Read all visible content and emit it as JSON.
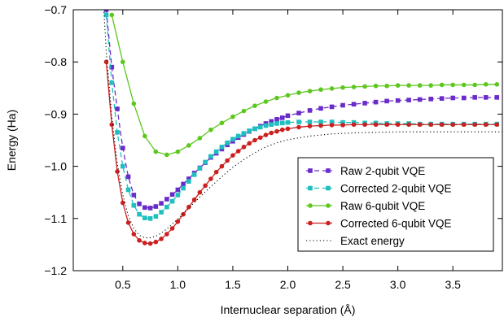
{
  "chart_data": {
    "type": "line",
    "title": "",
    "xlabel": "Internuclear separation (Å)",
    "ylabel": "Energy (Ha)",
    "xlim": [
      0.05,
      3.95
    ],
    "ylim": [
      -1.2,
      -0.7
    ],
    "xticks": [
      0.5,
      1.0,
      1.5,
      2.0,
      2.5,
      3.0,
      3.5
    ],
    "xtick_labels": [
      "0.5",
      "1.0",
      "1.5",
      "2.0",
      "2.5",
      "3.0",
      "3.5"
    ],
    "yticks": [
      -1.2,
      -1.1,
      -1.0,
      -0.9,
      -0.8,
      -0.7
    ],
    "ytick_labels": [
      "−1.2",
      "−1.1",
      "−1.0",
      "−0.9",
      "−0.8",
      "−0.7"
    ],
    "grid": false,
    "legend_position": "bottom-right",
    "series": [
      {
        "name": "Raw 2-qubit VQE",
        "color": "#6a2cc9",
        "marker": "square",
        "dash": "dashed",
        "x": [
          0.35,
          0.4,
          0.45,
          0.5,
          0.55,
          0.6,
          0.65,
          0.7,
          0.75,
          0.8,
          0.85,
          0.9,
          0.95,
          1.0,
          1.05,
          1.1,
          1.15,
          1.2,
          1.25,
          1.3,
          1.35,
          1.4,
          1.45,
          1.5,
          1.55,
          1.6,
          1.65,
          1.7,
          1.75,
          1.8,
          1.85,
          1.9,
          1.95,
          2.0,
          2.1,
          2.2,
          2.3,
          2.4,
          2.5,
          2.6,
          2.7,
          2.8,
          2.9,
          3.0,
          3.1,
          3.2,
          3.3,
          3.4,
          3.5,
          3.6,
          3.7,
          3.8,
          3.9
        ],
        "y": [
          -0.7,
          -0.81,
          -0.89,
          -0.965,
          -1.02,
          -1.055,
          -1.072,
          -1.079,
          -1.08,
          -1.077,
          -1.071,
          -1.063,
          -1.054,
          -1.045,
          -1.034,
          -1.024,
          -1.013,
          -1.003,
          -0.993,
          -0.983,
          -0.975,
          -0.967,
          -0.959,
          -0.952,
          -0.945,
          -0.939,
          -0.933,
          -0.928,
          -0.923,
          -0.918,
          -0.914,
          -0.91,
          -0.907,
          -0.903,
          -0.898,
          -0.893,
          -0.889,
          -0.886,
          -0.883,
          -0.881,
          -0.879,
          -0.877,
          -0.875,
          -0.874,
          -0.873,
          -0.872,
          -0.871,
          -0.87,
          -0.869,
          -0.869,
          -0.868,
          -0.868,
          -0.868
        ]
      },
      {
        "name": "Corrected 2-qubit VQE",
        "color": "#1fbfbf",
        "marker": "square",
        "dash": "dashed",
        "x": [
          0.35,
          0.4,
          0.45,
          0.5,
          0.55,
          0.6,
          0.65,
          0.7,
          0.75,
          0.8,
          0.85,
          0.9,
          0.95,
          1.0,
          1.05,
          1.1,
          1.15,
          1.2,
          1.25,
          1.3,
          1.35,
          1.4,
          1.45,
          1.5,
          1.55,
          1.6,
          1.65,
          1.7,
          1.75,
          1.8,
          1.85,
          1.9,
          1.95,
          2.0,
          2.1,
          2.2,
          2.3,
          2.4,
          2.5,
          2.6,
          2.7,
          2.8,
          2.9,
          3.0,
          3.1,
          3.2,
          3.3,
          3.4,
          3.5,
          3.6,
          3.7,
          3.8,
          3.9
        ],
        "y": [
          -0.71,
          -0.84,
          -0.935,
          -1.0,
          -1.045,
          -1.075,
          -1.092,
          -1.099,
          -1.1,
          -1.096,
          -1.088,
          -1.078,
          -1.067,
          -1.055,
          -1.042,
          -1.029,
          -1.016,
          -1.004,
          -0.992,
          -0.981,
          -0.972,
          -0.963,
          -0.955,
          -0.948,
          -0.942,
          -0.937,
          -0.932,
          -0.928,
          -0.925,
          -0.922,
          -0.92,
          -0.918,
          -0.917,
          -0.916,
          -0.915,
          -0.915,
          -0.915,
          -0.915,
          -0.916,
          -0.916,
          -0.917,
          -0.917,
          -0.918,
          -0.918,
          -0.918,
          -0.919,
          -0.919,
          -0.919,
          -0.919,
          -0.919,
          -0.919,
          -0.919,
          -0.919
        ]
      },
      {
        "name": "Raw 6-qubit VQE",
        "color": "#5cc71d",
        "marker": "circle",
        "dash": "solid",
        "x": [
          0.4,
          0.5,
          0.6,
          0.7,
          0.8,
          0.9,
          1.0,
          1.1,
          1.2,
          1.3,
          1.4,
          1.5,
          1.6,
          1.7,
          1.8,
          1.9,
          2.0,
          2.1,
          2.2,
          2.3,
          2.4,
          2.5,
          2.6,
          2.7,
          2.8,
          2.9,
          3.0,
          3.1,
          3.2,
          3.3,
          3.4,
          3.5,
          3.6,
          3.7,
          3.8,
          3.9
        ],
        "y": [
          -0.71,
          -0.8,
          -0.88,
          -0.942,
          -0.972,
          -0.978,
          -0.972,
          -0.96,
          -0.946,
          -0.93,
          -0.917,
          -0.905,
          -0.894,
          -0.884,
          -0.876,
          -0.869,
          -0.864,
          -0.859,
          -0.856,
          -0.853,
          -0.851,
          -0.849,
          -0.848,
          -0.847,
          -0.846,
          -0.846,
          -0.845,
          -0.845,
          -0.845,
          -0.845,
          -0.844,
          -0.844,
          -0.844,
          -0.844,
          -0.843,
          -0.843
        ]
      },
      {
        "name": "Corrected 6-qubit VQE",
        "color": "#cc1f1f",
        "marker": "circle",
        "dash": "solid",
        "x": [
          0.35,
          0.4,
          0.45,
          0.5,
          0.55,
          0.6,
          0.65,
          0.7,
          0.75,
          0.8,
          0.85,
          0.9,
          0.95,
          1.0,
          1.05,
          1.1,
          1.15,
          1.2,
          1.25,
          1.3,
          1.35,
          1.4,
          1.45,
          1.5,
          1.55,
          1.6,
          1.65,
          1.7,
          1.75,
          1.8,
          1.85,
          1.9,
          1.95,
          2.0,
          2.1,
          2.2,
          2.3,
          2.4,
          2.5,
          2.6,
          2.7,
          2.8,
          2.9,
          3.0,
          3.1,
          3.2,
          3.3,
          3.4,
          3.5,
          3.6,
          3.7,
          3.8,
          3.9
        ],
        "y": [
          -0.8,
          -0.92,
          -1.01,
          -1.07,
          -1.108,
          -1.13,
          -1.142,
          -1.147,
          -1.148,
          -1.145,
          -1.139,
          -1.13,
          -1.119,
          -1.106,
          -1.092,
          -1.078,
          -1.064,
          -1.05,
          -1.037,
          -1.024,
          -1.011,
          -1.0,
          -0.989,
          -0.979,
          -0.971,
          -0.963,
          -0.956,
          -0.95,
          -0.945,
          -0.94,
          -0.936,
          -0.933,
          -0.93,
          -0.928,
          -0.925,
          -0.923,
          -0.922,
          -0.921,
          -0.921,
          -0.92,
          -0.92,
          -0.92,
          -0.92,
          -0.92,
          -0.92,
          -0.92,
          -0.92,
          -0.92,
          -0.92,
          -0.92,
          -0.92,
          -0.92,
          -0.92
        ]
      },
      {
        "name": "Exact energy",
        "color": "#000000",
        "marker": "none",
        "dash": "dotted",
        "x": [
          0.3,
          0.35,
          0.4,
          0.45,
          0.5,
          0.55,
          0.6,
          0.65,
          0.7,
          0.75,
          0.8,
          0.85,
          0.9,
          0.95,
          1.0,
          1.1,
          1.2,
          1.3,
          1.4,
          1.5,
          1.6,
          1.7,
          1.8,
          1.9,
          2.0,
          2.2,
          2.4,
          2.6,
          2.8,
          3.0,
          3.2,
          3.4,
          3.6,
          3.8,
          3.95
        ],
        "y": [
          -0.6,
          -0.78,
          -0.905,
          -0.995,
          -1.055,
          -1.095,
          -1.119,
          -1.132,
          -1.137,
          -1.137,
          -1.134,
          -1.128,
          -1.12,
          -1.111,
          -1.101,
          -1.08,
          -1.059,
          -1.039,
          -1.02,
          -1.002,
          -0.987,
          -0.974,
          -0.963,
          -0.955,
          -0.949,
          -0.942,
          -0.938,
          -0.936,
          -0.935,
          -0.934,
          -0.934,
          -0.934,
          -0.934,
          -0.934,
          -0.934
        ]
      }
    ]
  }
}
